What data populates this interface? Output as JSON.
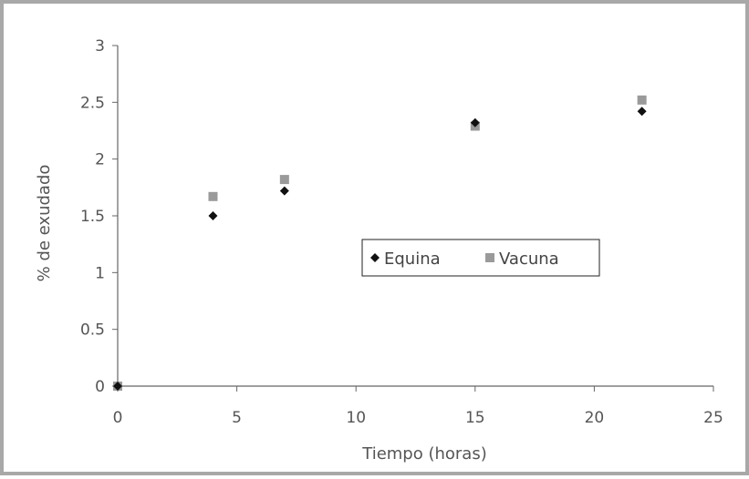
{
  "chart_data": {
    "type": "scatter",
    "title": "",
    "xlabel": "Tiempo (horas)",
    "ylabel": "% de exudado",
    "xlim": [
      0,
      25
    ],
    "ylim": [
      0,
      3
    ],
    "x_ticks": [
      "0",
      "5",
      "10",
      "15",
      "20",
      "25"
    ],
    "y_ticks": [
      "0",
      "0.5",
      "1",
      "1.5",
      "2",
      "2.5",
      "3"
    ],
    "grid": false,
    "legend_position": "center-right",
    "series": [
      {
        "name": "Equina",
        "marker": "diamond",
        "color": "#111111",
        "points": [
          {
            "x": 0,
            "y": 0
          },
          {
            "x": 4,
            "y": 1.5
          },
          {
            "x": 7,
            "y": 1.72
          },
          {
            "x": 15,
            "y": 2.32
          },
          {
            "x": 22,
            "y": 2.42
          }
        ]
      },
      {
        "name": "Vacuna",
        "marker": "square",
        "color": "#9a9a9a",
        "points": [
          {
            "x": 0,
            "y": 0
          },
          {
            "x": 4,
            "y": 1.67
          },
          {
            "x": 7,
            "y": 1.82
          },
          {
            "x": 15,
            "y": 2.29
          },
          {
            "x": 22,
            "y": 2.52
          }
        ]
      }
    ]
  }
}
